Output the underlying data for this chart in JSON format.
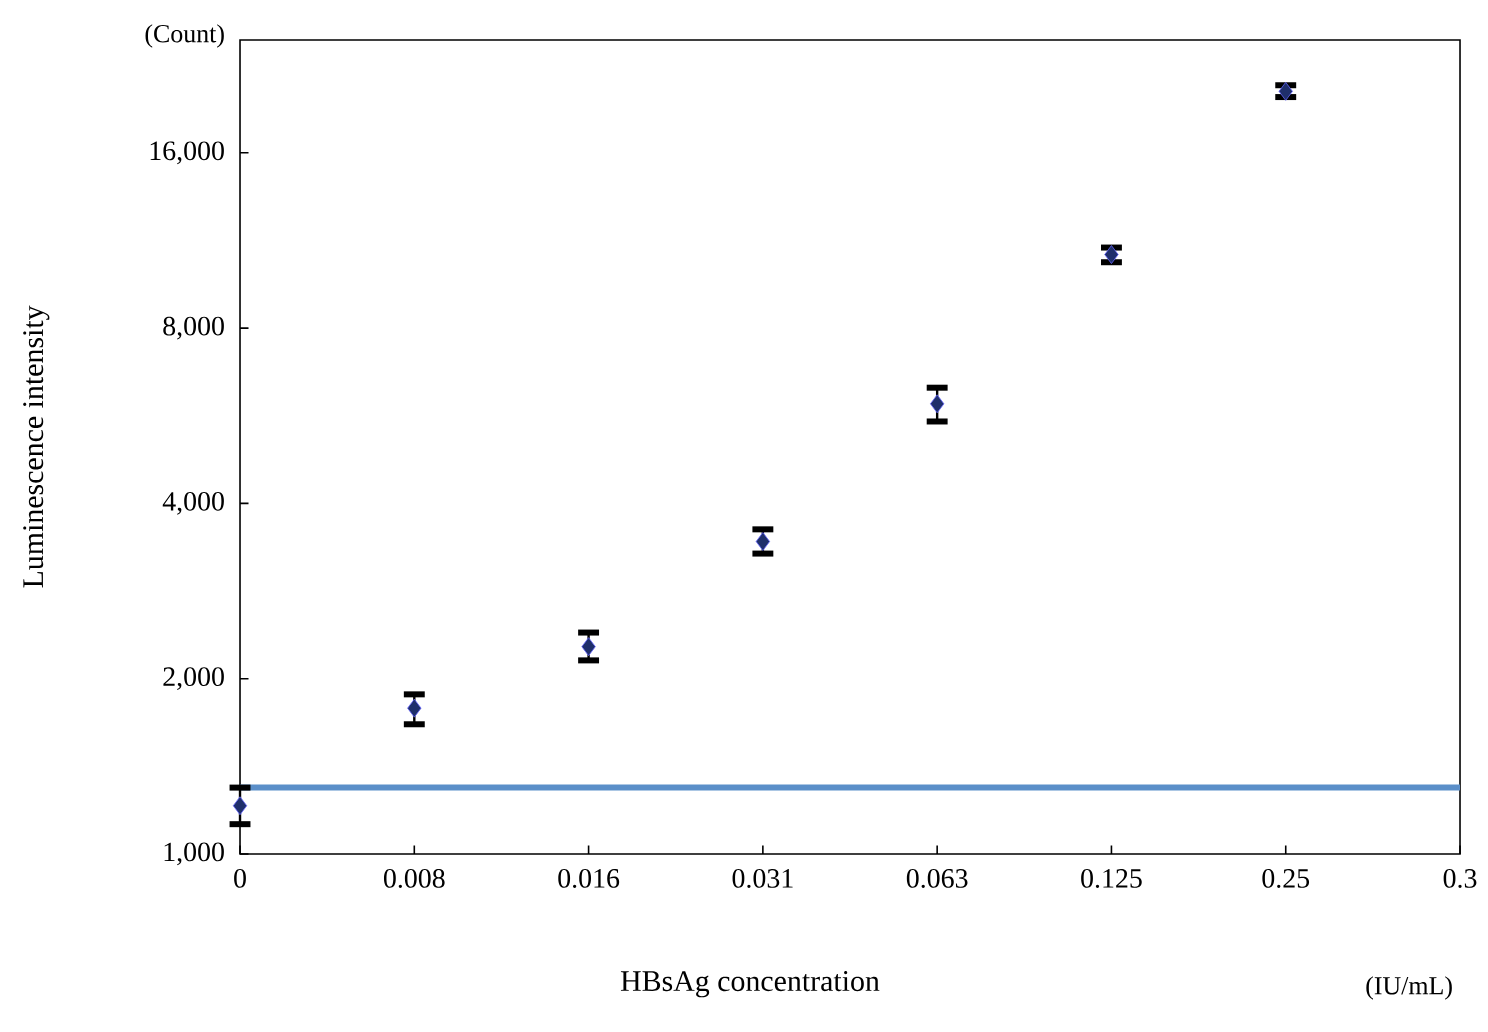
{
  "chart_data": {
    "type": "scatter",
    "xlabel": "HBsAg concentration",
    "ylabel": "Luminescence intensity",
    "annotations": [
      "(Count)",
      "(IU/mL)"
    ],
    "categories": [
      "0",
      "0.008",
      "0.016",
      "0.031",
      "0.063",
      "0.125",
      "0.25",
      "0.3"
    ],
    "series": [
      {
        "color": "#1f2f6b",
        "values": [
          1210,
          1780,
          2270,
          3440,
          5930,
          10700,
          20400,
          null
        ],
        "errors": [
          [
            1125,
            1300
          ],
          [
            1670,
            1880
          ],
          [
            2150,
            2400
          ],
          [
            3280,
            3610
          ],
          [
            5530,
            6320
          ],
          [
            10380,
            11000
          ],
          [
            19950,
            20900
          ],
          null
        ]
      }
    ],
    "log": "y",
    "ylim": [
      1000,
      25000
    ],
    "yticks": [
      {
        "value": 1000,
        "label": "1,000"
      },
      {
        "value": 2000,
        "label": "2,000"
      },
      {
        "value": 4000,
        "label": "4,000"
      },
      {
        "value": 8000,
        "label": "8,000"
      },
      {
        "value": 16000,
        "label": "16,000"
      }
    ],
    "ref_lines": [
      {
        "axis": "y",
        "value": 1300,
        "color": "#5b8fc9"
      }
    ],
    "marker": "diamond",
    "grid": false
  }
}
